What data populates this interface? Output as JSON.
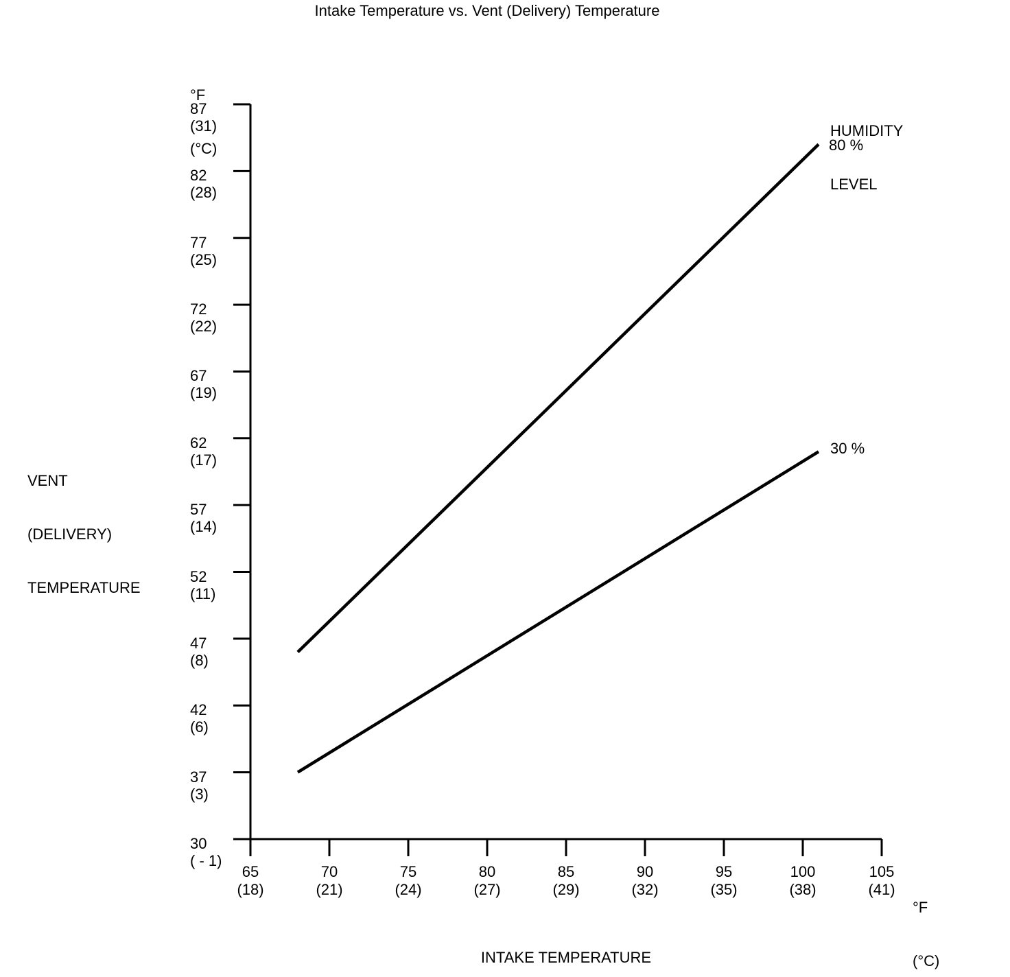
{
  "chart_data": {
    "type": "line",
    "title": "Intake Temperature vs. Vent (Delivery) Temperature",
    "xlabel": "INTAKE TEMPERATURE",
    "ylabel": "VENT (DELIVERY) TEMPERATURE",
    "ylabel_lines": [
      "VENT",
      "(DELIVERY)",
      "TEMPERATURE"
    ],
    "y_axis_unit_lines": [
      "°F",
      "(°C)"
    ],
    "x_axis_unit_lines": [
      "°F",
      "(°C)"
    ],
    "legend": {
      "title_lines": [
        "HUMIDITY",
        "LEVEL"
      ],
      "position": "top-right"
    },
    "y_ticks": [
      {
        "f": "87",
        "c": "(31)",
        "value_f": 87
      },
      {
        "f": "82",
        "c": "(28)",
        "value_f": 82
      },
      {
        "f": "77",
        "c": "(25)",
        "value_f": 77
      },
      {
        "f": "72",
        "c": "(22)",
        "value_f": 72
      },
      {
        "f": "67",
        "c": "(19)",
        "value_f": 67
      },
      {
        "f": "62",
        "c": "(17)",
        "value_f": 62
      },
      {
        "f": "57",
        "c": "(14)",
        "value_f": 57
      },
      {
        "f": "52",
        "c": "(11)",
        "value_f": 52
      },
      {
        "f": "47",
        "c": "(8)",
        "value_f": 47
      },
      {
        "f": "42",
        "c": "(6)",
        "value_f": 42
      },
      {
        "f": "37",
        "c": "(3)",
        "value_f": 37
      },
      {
        "f": "30",
        "c": "( - 1)",
        "value_f": 30
      }
    ],
    "x_ticks": [
      {
        "f": "65",
        "c": "(18)",
        "value_f": 65
      },
      {
        "f": "70",
        "c": "(21)",
        "value_f": 70
      },
      {
        "f": "75",
        "c": "(24)",
        "value_f": 75
      },
      {
        "f": "80",
        "c": "(27)",
        "value_f": 80
      },
      {
        "f": "85",
        "c": "(29)",
        "value_f": 85
      },
      {
        "f": "90",
        "c": "(32)",
        "value_f": 90
      },
      {
        "f": "95",
        "c": "(35)",
        "value_f": 95
      },
      {
        "f": "100",
        "c": "(38)",
        "value_f": 100
      },
      {
        "f": "105",
        "c": "(41)",
        "value_f": 105
      }
    ],
    "x_range_f": [
      65,
      105
    ],
    "y_range_f": [
      30,
      87
    ],
    "grid": false,
    "line_color": "#000000",
    "text_color": "#000000",
    "background": "#ffffff",
    "series": [
      {
        "name": "80 %",
        "humidity_percent": 80,
        "points_f_intake_vent": [
          [
            68,
            46
          ],
          [
            101,
            84
          ]
        ]
      },
      {
        "name": "30 %",
        "humidity_percent": 30,
        "points_f_intake_vent": [
          [
            68,
            37
          ],
          [
            101,
            61
          ]
        ]
      }
    ]
  }
}
